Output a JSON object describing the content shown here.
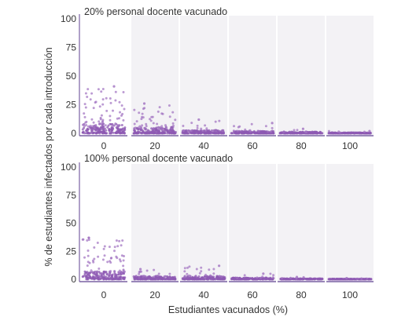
{
  "colors": {
    "point": "#a070c0",
    "point_dense": "#8d59b3",
    "axis": "#7a62a3",
    "panel_bg": "#f3f2f5",
    "text": "#333333"
  },
  "axis_labels": {
    "x": "Estudiantes vacunados (%)",
    "y": "% de estudiantes infectados por cada introducción"
  },
  "chart_data": [
    {
      "type": "scatter",
      "title": "20% personal docente vacunado",
      "xlabel": "Estudiantes vacunados (%)",
      "ylabel": "% de estudiantes infectados por cada introducción",
      "ylim": [
        0,
        100
      ],
      "yticks": [
        0,
        25,
        50,
        75,
        100
      ],
      "categories": [
        "0",
        "20",
        "40",
        "60",
        "80",
        "100"
      ],
      "grid": false,
      "jitter_groups": [
        {
          "x": "0",
          "max_y": 41,
          "typical_y": 6
        },
        {
          "x": "20",
          "max_y": 26,
          "typical_y": 4
        },
        {
          "x": "40",
          "max_y": 12,
          "typical_y": 2
        },
        {
          "x": "60",
          "max_y": 9,
          "typical_y": 1.5
        },
        {
          "x": "80",
          "max_y": 4,
          "typical_y": 1
        },
        {
          "x": "100",
          "max_y": 2,
          "typical_y": 0.5
        }
      ]
    },
    {
      "type": "scatter",
      "title": "100% personal docente vacunado",
      "xlabel": "Estudiantes vacunados (%)",
      "ylabel": "% de estudiantes infectados por cada introducción",
      "ylim": [
        0,
        100
      ],
      "yticks": [
        0,
        25,
        50,
        75,
        100
      ],
      "categories": [
        "0",
        "20",
        "40",
        "60",
        "80",
        "100"
      ],
      "grid": false,
      "jitter_groups": [
        {
          "x": "0",
          "max_y": 37,
          "typical_y": 5
        },
        {
          "x": "20",
          "max_y": 9,
          "typical_y": 2
        },
        {
          "x": "40",
          "max_y": 12,
          "typical_y": 2
        },
        {
          "x": "60",
          "max_y": 5,
          "typical_y": 1
        },
        {
          "x": "80",
          "max_y": 2,
          "typical_y": 0.5
        },
        {
          "x": "100",
          "max_y": 1,
          "typical_y": 0.3
        }
      ]
    }
  ]
}
